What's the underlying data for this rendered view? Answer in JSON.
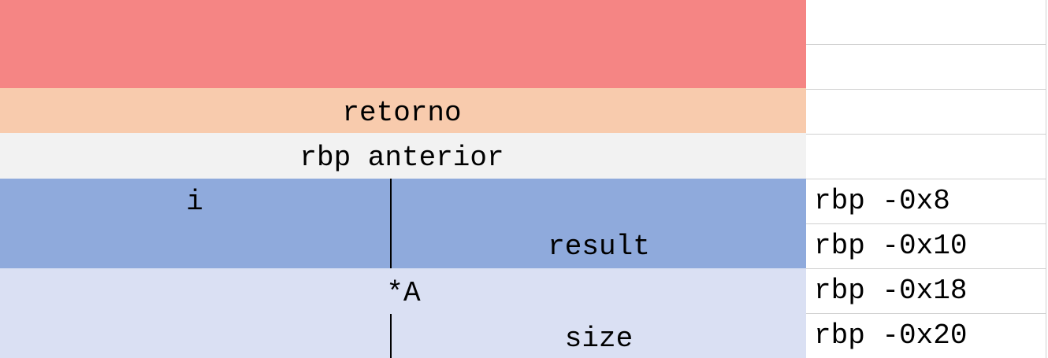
{
  "blocks": [
    {
      "name": "frame-above",
      "color": "#f58584"
    },
    {
      "name": "return",
      "label": "retorno",
      "color": "#f8cbad"
    },
    {
      "name": "saved-rbp",
      "label": "rbp anterior",
      "color": "#f2f2f2"
    },
    {
      "name": "locals",
      "color": "#8faadc",
      "labels": [
        "i",
        "result"
      ]
    },
    {
      "name": "params",
      "color": "#dae0f3",
      "labels": [
        "*A",
        "size"
      ]
    }
  ],
  "offsets": [
    "",
    "",
    "",
    "",
    "rbp -0x8",
    "rbp -0x10",
    "rbp -0x18",
    "rbp -0x20"
  ]
}
